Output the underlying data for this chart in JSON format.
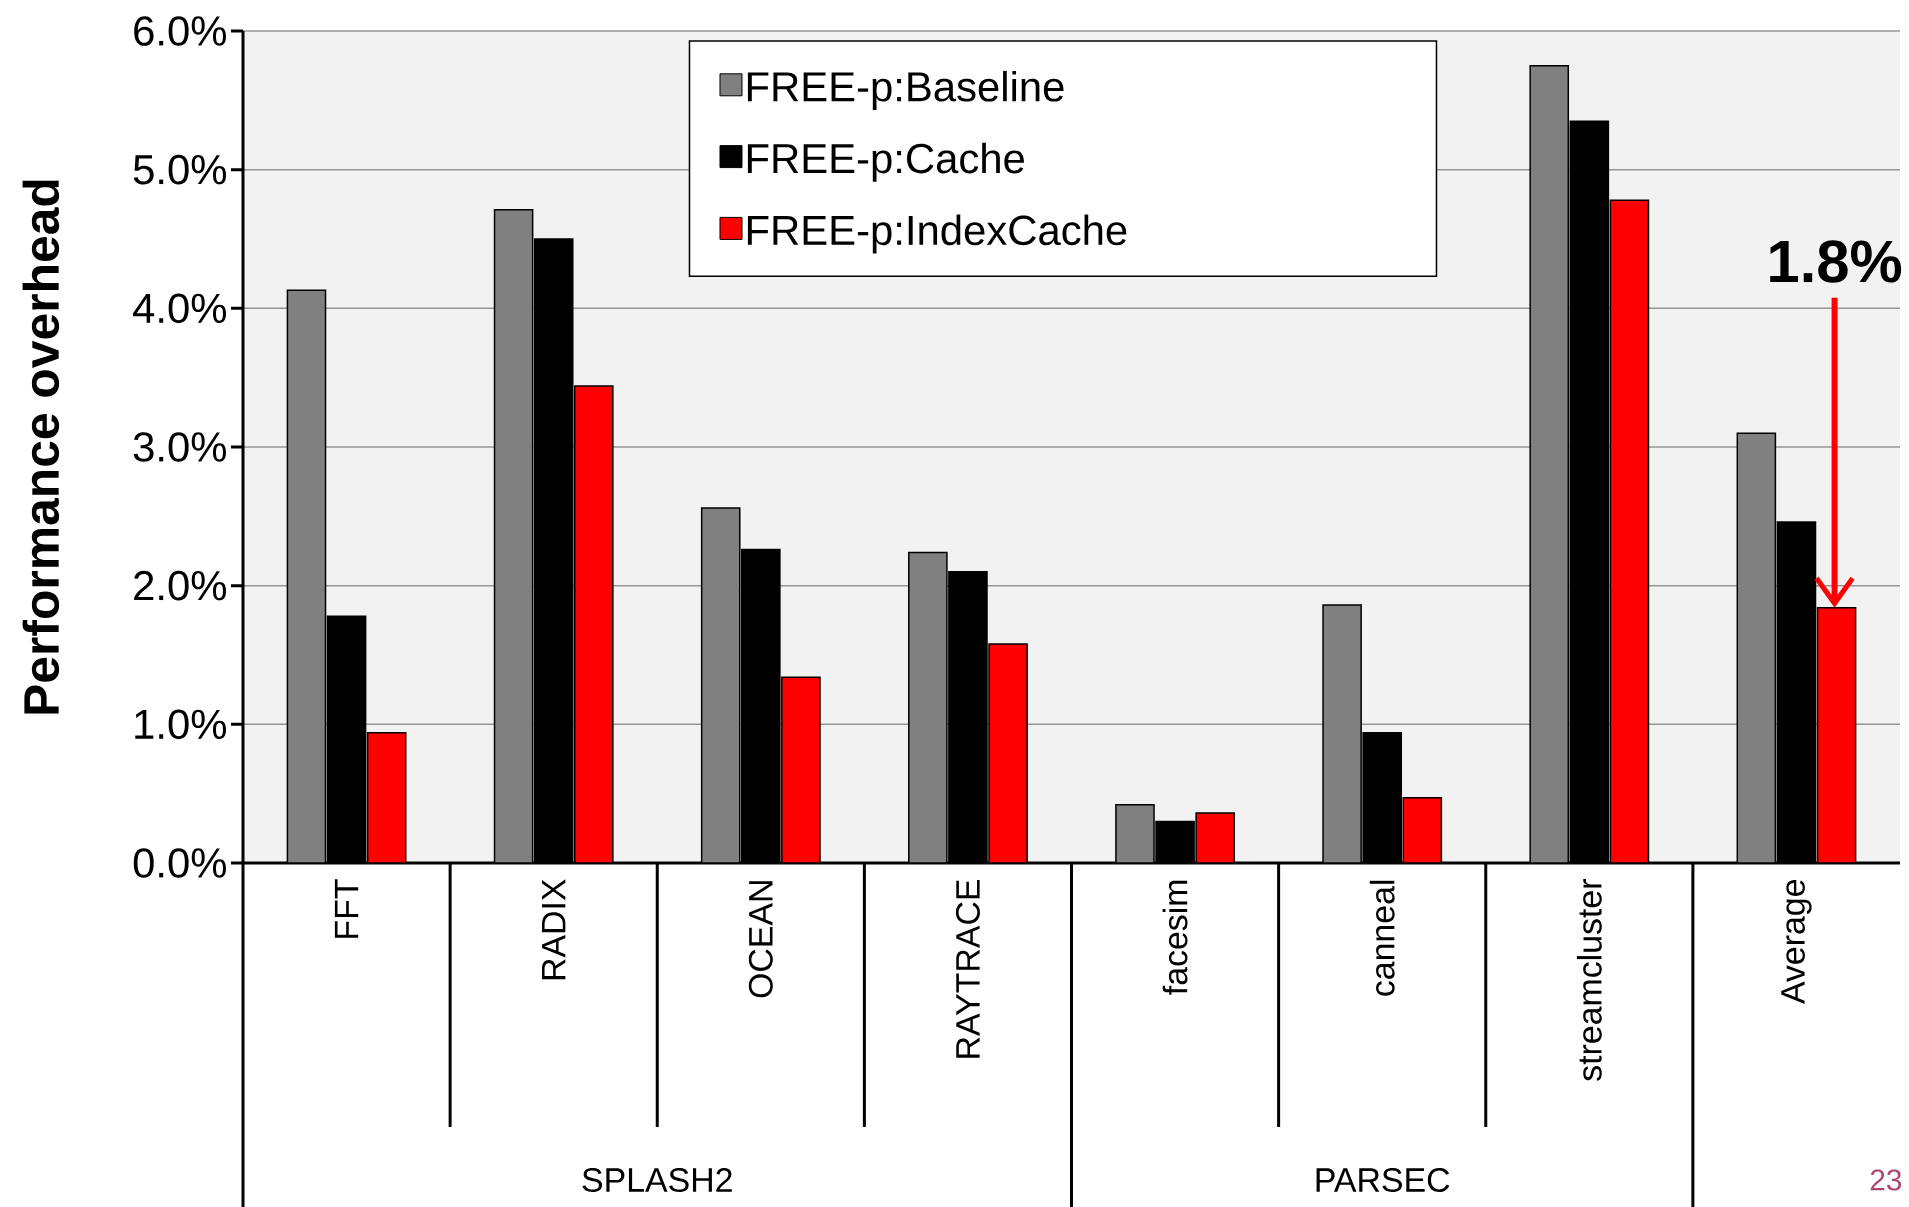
{
  "chart_data": {
    "type": "bar",
    "ylabel": "Performance overhead",
    "categories": [
      "FFT",
      "RADIX",
      "OCEAN",
      "RAYTRACE",
      "facesim",
      "canneal",
      "streamcluster",
      "Average"
    ],
    "series": [
      {
        "name": "FREE-p:Baseline",
        "color": "#808080",
        "values": [
          4.13,
          4.71,
          2.56,
          2.24,
          0.42,
          1.86,
          5.75,
          3.1
        ]
      },
      {
        "name": "FREE-p:Cache",
        "color": "#000000",
        "values": [
          1.78,
          4.5,
          2.26,
          2.1,
          0.3,
          0.94,
          5.35,
          2.46
        ]
      },
      {
        "name": "FREE-p:IndexCache",
        "color": "#ff0000",
        "values": [
          0.94,
          3.44,
          1.34,
          1.58,
          0.36,
          0.47,
          4.78,
          1.84
        ]
      }
    ],
    "ylim": [
      0,
      6
    ],
    "yticks": [
      {
        "value": 0,
        "label": "0.0%"
      },
      {
        "value": 1,
        "label": "1.0%"
      },
      {
        "value": 2,
        "label": "2.0%"
      },
      {
        "value": 3,
        "label": "3.0%"
      },
      {
        "value": 4,
        "label": "4.0%"
      },
      {
        "value": 5,
        "label": "5.0%"
      },
      {
        "value": 6,
        "label": "6.0%"
      }
    ],
    "grid": "y",
    "legend": "top",
    "annotations": [
      "1.8%",
      "SPLASH2",
      "PARSEC",
      "23"
    ]
  }
}
